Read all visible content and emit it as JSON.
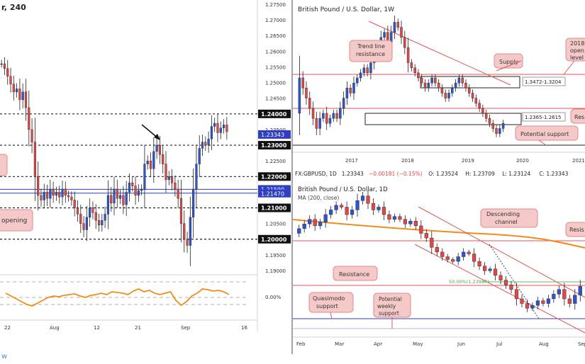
{
  "chart_data": [
    {
      "type": "candlestick",
      "panel": "left-4h",
      "title_fragment": "r, 240",
      "price_ticks": [
        "1.27500",
        "1.27000",
        "1.26500",
        "1.26000",
        "1.25500",
        "1.25000",
        "1.24500",
        "1.24000",
        "1.23500",
        "1.23000",
        "1.22500",
        "1.22000",
        "1.21500",
        "1.21000",
        "1.20500",
        "1.20000",
        "1.19500",
        "1.19000"
      ],
      "time_ticks": [
        "22",
        "Aug",
        "12",
        "21",
        "Sep",
        "16"
      ],
      "levels": [
        {
          "label": "1.24000",
          "value": 1.24
        },
        {
          "label": "1.23000",
          "value": 1.23
        },
        {
          "label": "1.22000",
          "value": 1.22
        },
        {
          "label": "1.21000",
          "value": 1.21
        },
        {
          "label": "1.20000",
          "value": 1.2
        }
      ],
      "blue_levels": [
        {
          "label": "1.21590",
          "value": 1.2159
        },
        {
          "label": "1.21470",
          "value": 1.2147
        }
      ],
      "last_price": {
        "label": "1.23343",
        "value": 1.23343
      },
      "annotations": [
        "opening"
      ],
      "closes": [
        1.256,
        1.2545,
        1.252,
        1.2495,
        1.247,
        1.248,
        1.2445,
        1.247,
        1.242,
        1.235,
        1.231,
        1.22,
        1.214,
        1.2125,
        1.215,
        1.213,
        1.216,
        1.214,
        1.215,
        1.2135,
        1.216,
        1.214,
        1.2135,
        1.2125,
        1.21,
        1.208,
        1.205,
        1.203,
        1.207,
        1.21,
        1.2085,
        1.206,
        1.2045,
        1.206,
        1.208,
        1.214,
        1.2115,
        1.216,
        1.213,
        1.214,
        1.211,
        1.215,
        1.218,
        1.217,
        1.214,
        1.2155,
        1.216,
        1.224,
        1.225,
        1.2225,
        1.228,
        1.23,
        1.227,
        1.224,
        1.219,
        1.22,
        1.218,
        1.216,
        1.213,
        1.205,
        1.2,
        1.198,
        1.207,
        1.216,
        1.224,
        1.229,
        1.231,
        1.23,
        1.232,
        1.236,
        1.237,
        1.234,
        1.2355,
        1.2365,
        1.2343
      ]
    },
    {
      "type": "oscillator",
      "panel": "left-indicator",
      "zero_label": "0.00%",
      "values": [
        0.3,
        0.1,
        -0.1,
        -0.3,
        -0.5,
        -0.6,
        -0.4,
        -0.2,
        0.0,
        0.1,
        0.05,
        0.15,
        0.2,
        0.25,
        0.1,
        0.0,
        0.15,
        0.2,
        0.3,
        0.2,
        0.4,
        0.35,
        0.3,
        0.2,
        0.45,
        0.6,
        0.4,
        0.5,
        0.3,
        0.2,
        0.3,
        0.4,
        -0.2,
        -0.55,
        -0.3,
        0.1,
        0.3,
        0.6,
        0.55,
        0.45,
        0.5,
        0.4,
        0.2
      ]
    },
    {
      "type": "candlestick",
      "panel": "top-right-1w",
      "title": "British Pound / U.S. Dollar, 1W",
      "time_ticks": [
        "2017",
        "2018",
        "2019",
        "2020",
        "2021"
      ],
      "annotations": [
        "Trend line resistance",
        "Supply",
        "Potential support",
        "2018 open level",
        "Res"
      ],
      "zones": [
        {
          "label": "1.3472-1.3204",
          "low": 1.3204,
          "high": 1.3472
        },
        {
          "label": "1.2365-1.2615",
          "low": 1.2365,
          "high": 1.2615
        }
      ],
      "closes": [
        1.32,
        1.3,
        1.28,
        1.26,
        1.24,
        1.22,
        1.24,
        1.25,
        1.23,
        1.24,
        1.25,
        1.24,
        1.26,
        1.28,
        1.3,
        1.29,
        1.31,
        1.32,
        1.33,
        1.34,
        1.33,
        1.35,
        1.37,
        1.38,
        1.4,
        1.41,
        1.39,
        1.41,
        1.43,
        1.42,
        1.4,
        1.38,
        1.35,
        1.34,
        1.33,
        1.32,
        1.31,
        1.3,
        1.31,
        1.32,
        1.31,
        1.3,
        1.29,
        1.28,
        1.29,
        1.3,
        1.31,
        1.32,
        1.31,
        1.3,
        1.29,
        1.28,
        1.27,
        1.26,
        1.25,
        1.24,
        1.23,
        1.22,
        1.21,
        1.22,
        1.23
      ]
    },
    {
      "type": "candlestick",
      "panel": "bottom-right-1d",
      "header": {
        "symbol": "FX:GBPUSD, 1D",
        "last": "1.23343",
        "change": "−0.00181 (−0.15%)",
        "open": "O: 1.23524",
        "high": "H: 1.23709",
        "low": "L: 1.23124",
        "close": "C: 1.23343"
      },
      "title": "British Pound / U.S. Dollar, 1D",
      "ma_label": "MA (200, close)",
      "time_ticks": [
        "Feb",
        "Mar",
        "Apr",
        "May",
        "Jun",
        "Jul",
        "Aug",
        "Sep"
      ],
      "annotations": [
        "Descending channel",
        "Resistance",
        "Resis",
        "Quasimodo support",
        "Potential weekly support"
      ],
      "fib_label": "50.00%(1.23997)",
      "closes": [
        1.295,
        1.3,
        1.305,
        1.298,
        1.302,
        1.31,
        1.315,
        1.32,
        1.318,
        1.31,
        1.315,
        1.325,
        1.33,
        1.322,
        1.315,
        1.318,
        1.31,
        1.305,
        1.308,
        1.305,
        1.3,
        1.303,
        1.298,
        1.29,
        1.285,
        1.275,
        1.27,
        1.265,
        1.262,
        1.26,
        1.265,
        1.27,
        1.268,
        1.26,
        1.255,
        1.25,
        1.252,
        1.245,
        1.24,
        1.235,
        1.23,
        1.22,
        1.215,
        1.21,
        1.213,
        1.218,
        1.215,
        1.22,
        1.225,
        1.23,
        1.22,
        1.215,
        1.224,
        1.2334
      ]
    }
  ]
}
